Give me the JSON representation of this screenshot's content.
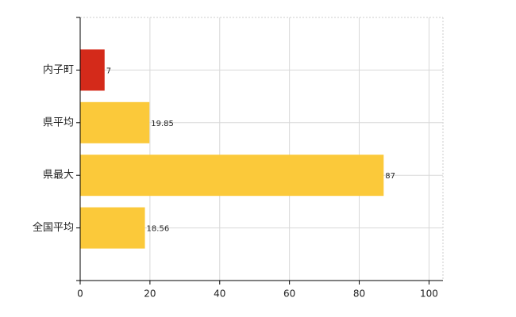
{
  "chart_data": {
    "type": "bar",
    "orientation": "horizontal",
    "categories": [
      "内子町",
      "県平均",
      "県最大",
      "全国平均"
    ],
    "values": [
      7,
      19.85,
      87,
      18.56
    ],
    "colors": [
      "#d42a1a",
      "#fbc93a",
      "#fbc93a",
      "#fbc93a"
    ],
    "xlim": [
      0,
      104
    ],
    "xticks": [
      0,
      20,
      40,
      60,
      80,
      100
    ],
    "grid": true
  }
}
